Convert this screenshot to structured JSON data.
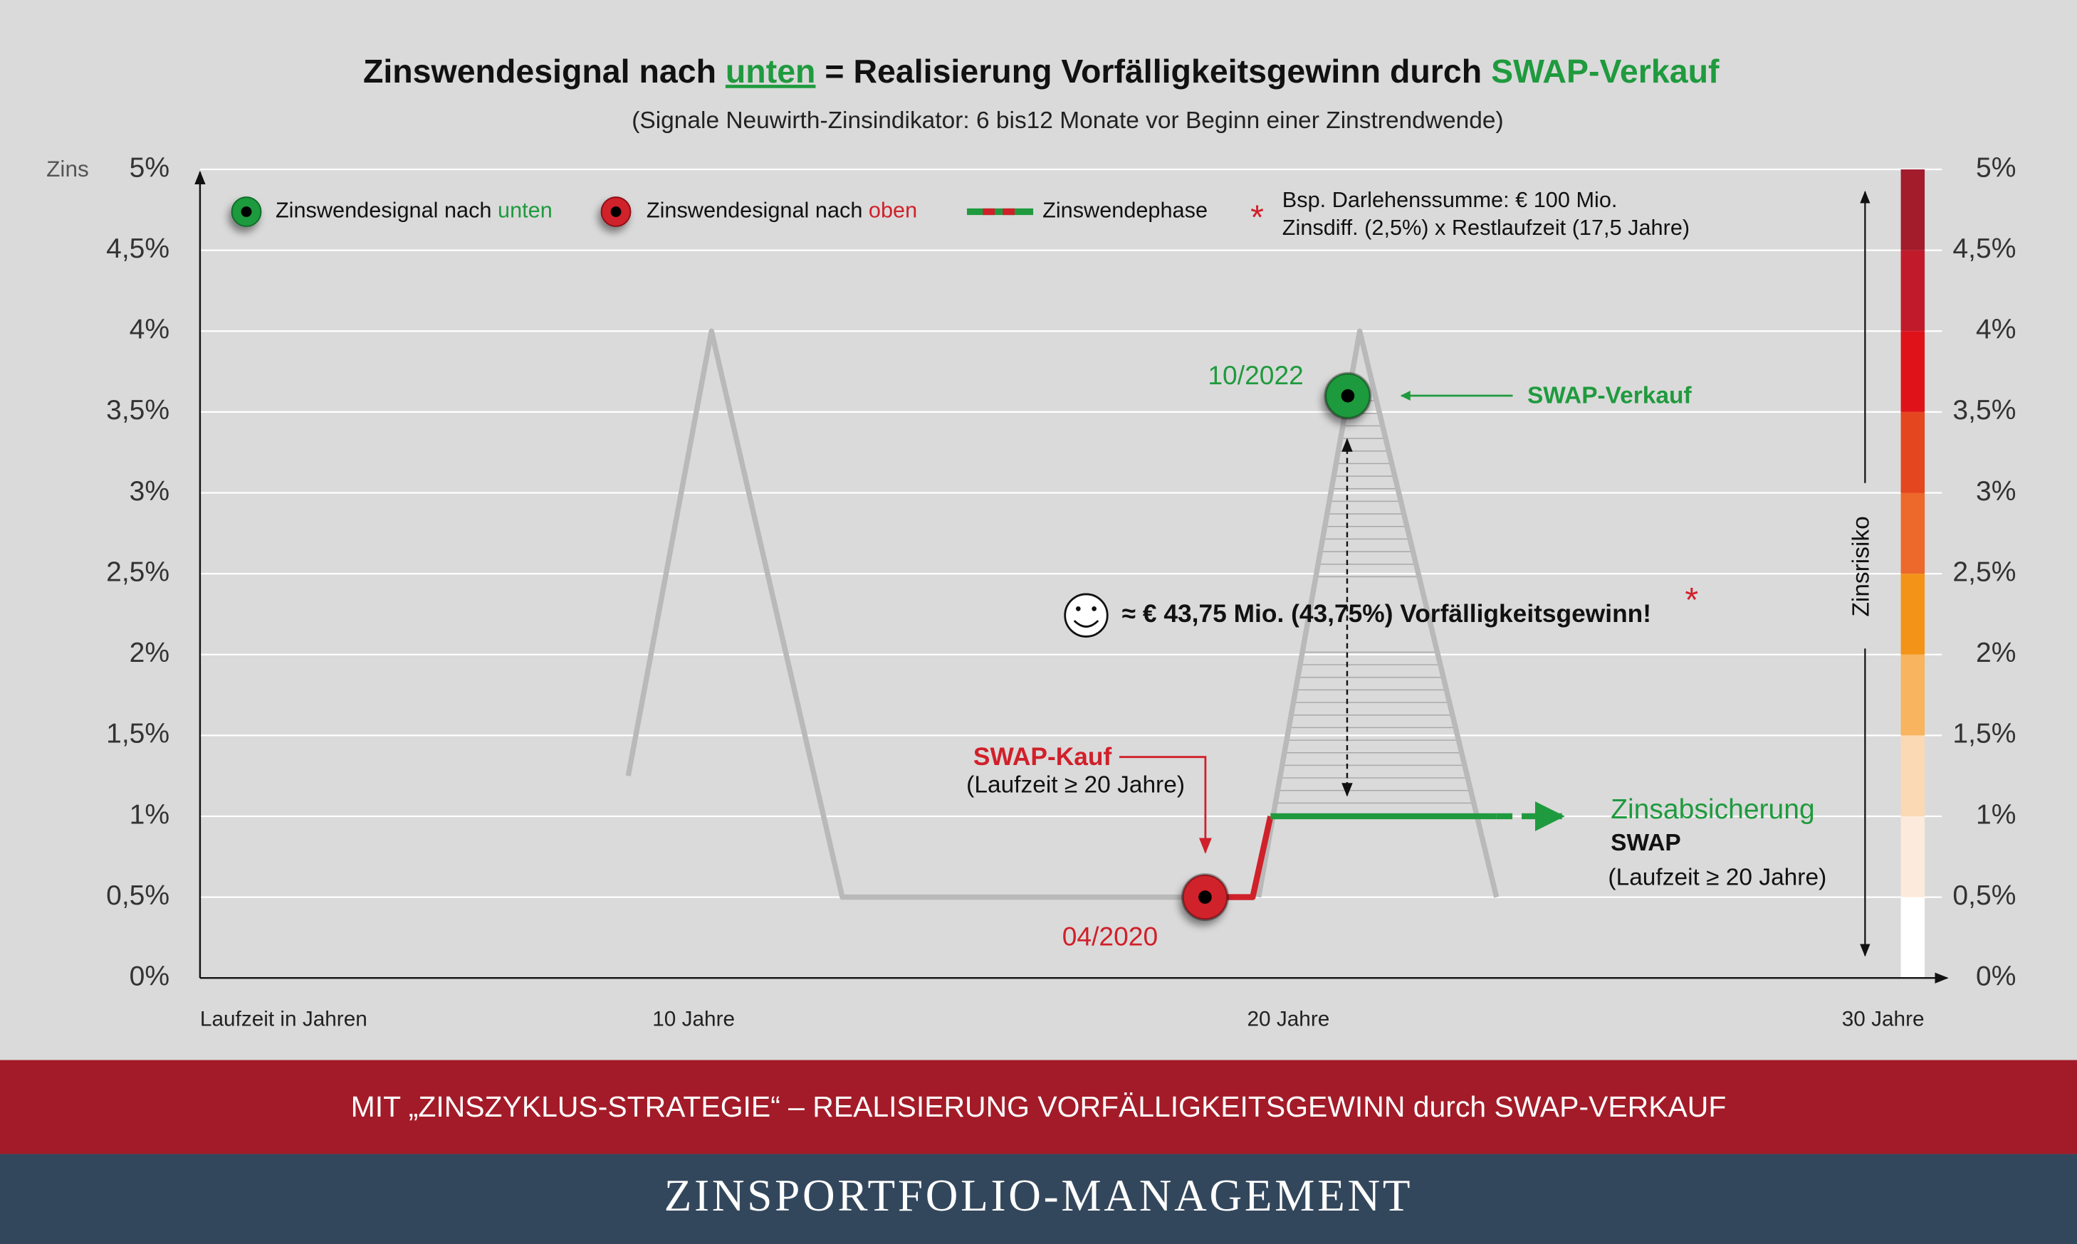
{
  "chart_data": {
    "type": "line",
    "title": [
      {
        "text": "Zinswendesignal nach ",
        "color": "#111111"
      },
      {
        "text": "unten",
        "color": "#1f9a3e",
        "underline": true
      },
      {
        "text": " = Realisierung Vorfälligkeitsgewinn durch ",
        "color": "#111111"
      },
      {
        "text": "SWAP-Verkauf",
        "color": "#1f9a3e"
      }
    ],
    "subtitle": "(Signale Neuwirth-Zinsindikator: 6 bis12 Monate vor Beginn einer Zinstrendwende)",
    "y_label": "Zins",
    "x_label": "Laufzeit in Jahren",
    "xlim": [
      1.7,
      30.9
    ],
    "xticks": [
      {
        "value": 10,
        "label": "10 Jahre"
      },
      {
        "value": 20,
        "label": "20 Jahre"
      },
      {
        "value": 30,
        "label": "30 Jahre"
      }
    ],
    "ylim": [
      0,
      5
    ],
    "yticks": [
      {
        "value": 0,
        "label": "0%"
      },
      {
        "value": 0.5,
        "label": "0,5%"
      },
      {
        "value": 1,
        "label": "1%"
      },
      {
        "value": 1.5,
        "label": "1,5%"
      },
      {
        "value": 2,
        "label": "2%"
      },
      {
        "value": 2.5,
        "label": "2,5%"
      },
      {
        "value": 3,
        "label": "3%"
      },
      {
        "value": 3.5,
        "label": "3,5%"
      },
      {
        "value": 4,
        "label": "4%"
      },
      {
        "value": 4.5,
        "label": "4,5%"
      },
      {
        "value": 5,
        "label": "5%"
      }
    ],
    "grid": true,
    "series": [
      {
        "color": "#b9b9b9",
        "x": [
          8.9,
          10.3,
          12.5,
          18.6,
          null,
          19.5,
          21.2,
          23.5
        ],
        "values": [
          1.25,
          4,
          0.5,
          0.5,
          null,
          0.5,
          4,
          0.5
        ]
      },
      {
        "color": "#d0202a",
        "x": [
          18.6,
          19.4,
          19.7
        ],
        "values": [
          0.5,
          0.5,
          1
        ]
      },
      {
        "color": "#1f9a3e",
        "x": [
          19.7,
          23.5
        ],
        "values": [
          1,
          1
        ]
      },
      {
        "color": "#1f9a3e",
        "dashed": true,
        "x": [
          23.5,
          24.6
        ],
        "values": [
          1,
          1
        ]
      }
    ],
    "points": [
      {
        "x": 18.6,
        "y": 0.5,
        "color": "#d0202a",
        "label": "04/2020"
      },
      {
        "x": 21,
        "y": 3.6,
        "color": "#1f9a3e",
        "label": "10/2022"
      }
    ],
    "legend": [
      {
        "text": "Zinswendesignal nach ",
        "highlight": "unten"
      },
      {
        "text": "Zinswendesignal nach ",
        "highlight": "oben"
      },
      {
        "text": "Zinswendephase"
      }
    ],
    "note_star": "*",
    "note_lines": [
      "Bsp. Darlehenssumme: € 100 Mio.",
      "Zinsdiff. (2,5%) x Restlaufzeit (17,5 Jahre)"
    ],
    "swap_sale": "SWAP-Verkauf",
    "swap_buy": "SWAP-Kauf",
    "swap_buy_term": "(Laufzeit ≥ 20 Jahre)",
    "gain": "≈ € 43,75 Mio. (43,75%) Vorfälligkeitsgewinn!",
    "gain_star": "*",
    "hedge": "Zinsabsicherung",
    "hedge_swap": "SWAP",
    "hedge_term": "(Laufzeit ≥ 20 Jahre)",
    "risk_label": "Zinsrisiko",
    "risk_colors": [
      "#ffffff",
      "#fcebdc",
      "#fcd9b5",
      "#f8b45e",
      "#f39318",
      "#ec682b",
      "#e4461f",
      "#e01219",
      "#c11b2b",
      "#a21c2c"
    ]
  },
  "footer": {
    "strategy": "MIT „ZINSZYKLUS-STRATEGIE“ – REALISIERUNG VORFÄLLIGKEITSGEWINN durch SWAP-VERKAUF",
    "brand": "ZINSPORTFOLIO-MANAGEMENT"
  }
}
